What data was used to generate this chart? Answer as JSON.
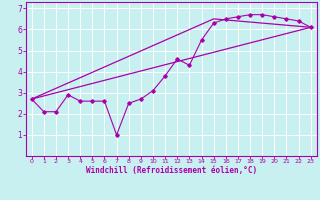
{
  "xlabel": "Windchill (Refroidissement éolien,°C)",
  "bg_color": "#c8f0f0",
  "grid_color": "#ffffff",
  "line_color": "#aa00aa",
  "xlim": [
    -0.5,
    23.5
  ],
  "ylim": [
    0,
    7.3
  ],
  "xticks": [
    0,
    1,
    2,
    3,
    4,
    5,
    6,
    7,
    8,
    9,
    10,
    11,
    12,
    13,
    14,
    15,
    16,
    17,
    18,
    19,
    20,
    21,
    22,
    23
  ],
  "yticks": [
    1,
    2,
    3,
    4,
    5,
    6,
    7
  ],
  "scatter_x": [
    0,
    1,
    2,
    3,
    4,
    5,
    6,
    7,
    8,
    9,
    10,
    11,
    12,
    13,
    14,
    15,
    16,
    17,
    18,
    19,
    20,
    21,
    22,
    23
  ],
  "scatter_y": [
    2.7,
    2.1,
    2.1,
    2.9,
    2.6,
    2.6,
    2.6,
    1.0,
    2.5,
    2.7,
    3.1,
    3.8,
    4.6,
    4.3,
    5.5,
    6.3,
    6.5,
    6.6,
    6.7,
    6.7,
    6.6,
    6.5,
    6.4,
    6.1
  ],
  "line1_x": [
    0,
    23
  ],
  "line1_y": [
    2.7,
    6.1
  ],
  "line2_x": [
    0,
    15,
    23
  ],
  "line2_y": [
    2.7,
    6.5,
    6.1
  ]
}
